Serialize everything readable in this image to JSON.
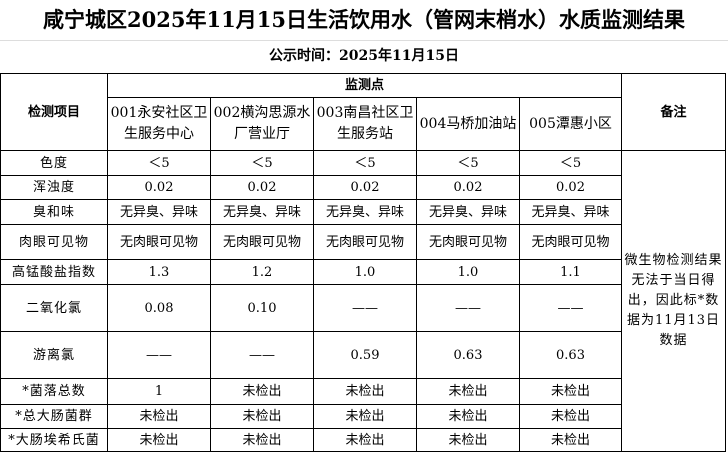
{
  "title": "咸宁城区2025年11月15日生活饮用水（管网末梢水）水质监测结果",
  "subtitle": "公示时间：2025年11月15日",
  "headers": {
    "item": "检测项目",
    "sites_group": "监测点",
    "remark": "备注",
    "sites": [
      "001永安社区卫生服务中心",
      "002横沟思源水厂营业厅",
      "003南昌社区卫生服务站",
      "004马桥加油站",
      "005潭惠小区"
    ]
  },
  "rows": [
    {
      "item": "色度",
      "values": [
        "＜5",
        "＜5",
        "＜5",
        "＜5",
        "＜5"
      ]
    },
    {
      "item": "浑浊度",
      "values": [
        "0.02",
        "0.02",
        "0.02",
        "0.02",
        "0.02"
      ]
    },
    {
      "item": "臭和味",
      "values": [
        "无异臭、异味",
        "无异臭、异味",
        "无异臭、异味",
        "无异臭、异味",
        "无异臭、异味"
      ]
    },
    {
      "item": "肉眼可见物",
      "values": [
        "无肉眼可见物",
        "无肉眼可见物",
        "无肉眼可见物",
        "无肉眼可见物",
        "无肉眼可见物"
      ]
    },
    {
      "item": "高锰酸盐指数",
      "values": [
        "1.3",
        "1.2",
        "1.0",
        "1.0",
        "1.1"
      ]
    },
    {
      "item": "二氧化氯",
      "values": [
        "0.08",
        "0.10",
        "——",
        "——",
        "——"
      ]
    },
    {
      "item": "游离氯",
      "values": [
        "——",
        "——",
        "0.59",
        "0.63",
        "0.63"
      ]
    },
    {
      "item": "*菌落总数",
      "values": [
        "1",
        "未检出",
        "未检出",
        "未检出",
        "未检出"
      ]
    },
    {
      "item": "*总大肠菌群",
      "values": [
        "未检出",
        "未检出",
        "未检出",
        "未检出",
        "未检出"
      ]
    },
    {
      "item": "*大肠埃希氏菌",
      "values": [
        "未检出",
        "未检出",
        "未检出",
        "未检出",
        "未检出"
      ]
    }
  ],
  "remark": "微生物检测结果无法于当日得出，因此标*数据为11月13日数据"
}
